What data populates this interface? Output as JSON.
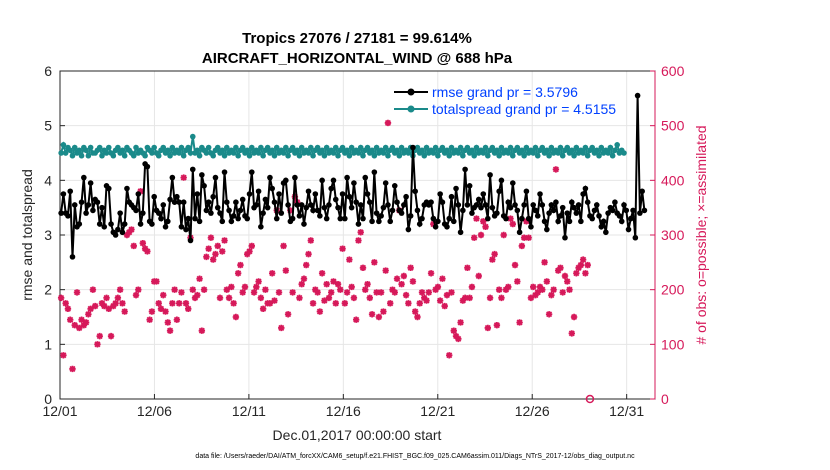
{
  "chart_data": {
    "type": "line",
    "title": "Tropics 27076 / 27181 = 99.614%",
    "subtitle": "AIRCRAFT_HORIZONTAL_WIND @ 688 hPa",
    "xlabel": "Dec.01,2017 00:00:00 start",
    "ylabel": "rmse and totalspread",
    "y2label": "# of obs: o=possible; ×=assimilated",
    "footnote": "data file: /Users/raeder/DAI/ATM_forcXX/CAM6_setup/f.e21.FHIST_BGC.f09_025.CAM6assim.011/Diags_NTrS_2017-12/obs_diag_output.nc",
    "xlim": [
      0,
      31.5
    ],
    "ylim": [
      0,
      6
    ],
    "y2lim": [
      0,
      600
    ],
    "x_ticks": [
      {
        "pos": 0,
        "label": "12/01"
      },
      {
        "pos": 5,
        "label": "12/06"
      },
      {
        "pos": 10,
        "label": "12/11"
      },
      {
        "pos": 15,
        "label": "12/16"
      },
      {
        "pos": 20,
        "label": "12/21"
      },
      {
        "pos": 25,
        "label": "12/26"
      },
      {
        "pos": 30,
        "label": "12/31"
      }
    ],
    "y_ticks": [
      "0",
      "1",
      "2",
      "3",
      "4",
      "5",
      "6"
    ],
    "y2_ticks": [
      "0",
      "100",
      "200",
      "300",
      "400",
      "500",
      "600"
    ],
    "colors": {
      "rmse": "#000000",
      "spread": "#1a8a8a",
      "obs": "#d6195a",
      "legend_text": "#0040ff"
    },
    "legend": [
      {
        "name": "rmse grand pr = 3.5796"
      },
      {
        "name": "totalspread grand pr = 4.5155"
      }
    ],
    "series": [
      {
        "name": "rmse",
        "values": [
          3.4,
          3.75,
          3.4,
          3.35,
          3.8,
          2.6,
          3.55,
          3.15,
          3.2,
          3.6,
          4.05,
          3.4,
          3.55,
          3.95,
          3.45,
          3.65,
          3.6,
          3.2,
          3.5,
          3.15,
          3.9,
          3.85,
          3.2,
          3.05,
          3.0,
          3.1,
          3.4,
          3.05,
          3.2,
          3.85,
          3.6,
          3.55,
          3.5,
          3.45,
          3.75,
          3.2,
          3.4,
          4.3,
          4.25,
          3.25,
          3.2,
          3.7,
          3.45,
          3.4,
          3.3,
          3.55,
          3.15,
          3.25,
          3.65,
          4.05,
          3.6,
          3.7,
          3.6,
          3.15,
          3.6,
          3.1,
          3.3,
          2.9,
          4.2,
          3.3,
          3.75,
          3.25,
          4.1,
          3.9,
          3.45,
          3.6,
          3.4,
          3.7,
          4.05,
          3.5,
          3.4,
          3.25,
          4.15,
          3.6,
          3.45,
          3.25,
          3.35,
          3.6,
          3.3,
          3.45,
          3.65,
          3.35,
          3.3,
          3.75,
          4.15,
          3.5,
          3.55,
          3.8,
          3.15,
          3.4,
          3.65,
          3.5,
          4.05,
          3.85,
          3.6,
          3.3,
          3.75,
          3.4,
          3.95,
          4.0,
          3.55,
          3.25,
          3.3,
          4.05,
          3.55,
          3.35,
          3.55,
          3.2,
          3.5,
          3.8,
          3.55,
          3.45,
          3.75,
          3.45,
          3.35,
          4.0,
          3.5,
          3.3,
          3.55,
          3.85,
          4.0,
          3.65,
          3.5,
          3.3,
          3.75,
          3.3,
          4.05,
          3.7,
          3.5,
          3.95,
          3.6,
          3.2,
          3.55,
          3.3,
          4.05,
          3.75,
          3.6,
          3.25,
          4.15,
          3.4,
          3.25,
          3.35,
          3.5,
          3.95,
          3.55,
          3.25,
          3.45,
          3.9,
          3.6,
          3.45,
          3.4,
          3.55,
          3.7,
          3.1,
          3.35,
          4.6,
          3.8,
          3.45,
          3.2,
          3.3,
          3.55,
          3.6,
          3.55,
          3.6,
          3.3,
          3.15,
          3.25,
          3.75,
          3.6,
          3.2,
          3.15,
          3.3,
          3.7,
          3.25,
          3.85,
          3.55,
          3.05,
          3.45,
          4.2,
          3.55,
          3.9,
          3.4,
          3.5,
          3.55,
          3.65,
          3.5,
          3.75,
          3.55,
          3.3,
          4.1,
          3.5,
          3.35,
          3.4,
          3.8,
          4.0,
          3.35,
          3.3,
          3.6,
          3.5,
          3.95,
          3.55,
          3.45,
          3.05,
          3.3,
          3.55,
          3.8,
          3.3,
          3.15,
          3.55,
          3.45,
          3.35,
          3.75,
          3.55,
          3.25,
          3.1,
          3.4,
          3.55,
          3.45,
          3.6,
          3.25,
          3.35,
          3.5,
          2.95,
          3.4,
          3.25,
          3.6,
          3.5,
          3.4,
          3.55,
          3.25,
          3.75,
          3.85,
          3.6,
          3.35,
          3.3,
          3.45,
          3.55,
          3.35,
          3.15,
          3.25,
          3.05,
          3.4,
          3.5,
          3.45,
          3.6,
          3.4,
          3.35,
          3.25,
          3.55,
          3.45,
          3.1,
          3.3,
          3.45,
          2.95,
          5.55,
          3.4,
          3.8,
          3.45
        ]
      },
      {
        "name": "totalspread",
        "values": [
          4.5,
          4.65,
          4.5,
          4.6,
          4.55,
          4.45,
          4.6,
          4.5,
          4.55,
          4.45,
          4.6,
          4.55,
          4.45,
          4.6,
          4.5,
          4.5,
          4.55,
          4.6,
          4.45,
          4.55,
          4.5,
          4.6,
          4.5,
          4.45,
          4.55,
          4.6,
          4.5,
          4.55,
          4.45,
          4.6,
          4.55,
          4.5,
          4.45,
          4.6,
          4.5,
          4.55,
          4.5,
          4.45,
          4.6,
          4.55,
          4.5,
          4.6,
          4.5,
          4.45,
          4.55,
          4.6,
          4.5,
          4.55,
          4.45,
          4.6,
          4.5,
          4.55,
          4.5,
          4.6,
          4.45,
          4.55,
          4.6,
          4.5,
          4.8,
          4.5,
          4.55,
          4.45,
          4.6,
          4.55,
          4.5,
          4.6,
          4.5,
          4.45,
          4.55,
          4.6,
          4.5,
          4.55,
          4.45,
          4.6,
          4.5,
          4.55,
          4.5,
          4.6,
          4.45,
          4.55,
          4.6,
          4.5,
          4.55,
          4.45,
          4.6,
          4.5,
          4.55,
          4.5,
          4.6,
          4.45,
          4.55,
          4.6,
          4.5,
          4.55,
          4.45,
          4.6,
          4.5,
          4.55,
          4.5,
          4.6,
          4.45,
          4.55,
          4.6,
          4.5,
          4.55,
          4.45,
          4.6,
          4.5,
          4.55,
          4.5,
          4.6,
          4.45,
          4.55,
          4.6,
          4.5,
          4.55,
          4.45,
          4.6,
          4.5,
          4.55,
          4.5,
          4.6,
          4.45,
          4.55,
          4.6,
          4.5,
          4.55,
          4.45,
          4.6,
          4.5,
          4.55,
          4.5,
          4.6,
          4.45,
          4.55,
          4.6,
          4.5,
          4.55,
          4.45,
          4.6,
          4.5,
          4.55,
          4.5,
          4.6,
          4.45,
          4.55,
          4.6,
          4.5,
          4.55,
          4.45,
          4.6,
          4.5,
          4.55,
          4.5,
          4.6,
          4.45,
          4.55,
          4.6,
          4.5,
          4.55,
          4.45,
          4.6,
          4.5,
          4.55,
          4.5,
          4.6,
          4.45,
          4.55,
          4.6,
          4.5,
          4.55,
          4.45,
          4.6,
          4.5,
          4.55,
          4.5,
          4.6,
          4.45,
          4.55,
          4.6,
          4.5,
          4.55,
          4.45,
          4.6,
          4.5,
          4.55,
          4.5,
          4.6,
          4.45,
          4.55,
          4.6,
          4.5,
          4.55,
          4.45,
          4.6,
          4.5,
          4.55,
          4.5,
          4.6,
          4.45,
          4.55,
          4.6,
          4.5,
          4.55,
          4.45,
          4.6,
          4.5,
          4.55,
          4.5,
          4.6,
          4.45,
          4.55,
          4.6,
          4.5,
          4.55,
          4.45,
          4.6,
          4.5,
          4.55,
          4.5,
          4.6,
          4.45,
          4.55,
          4.6,
          4.5,
          4.55,
          4.45,
          4.6,
          4.5,
          4.55,
          4.5,
          4.6,
          4.45,
          4.55,
          4.6,
          4.5,
          4.55,
          4.45,
          4.6,
          4.5,
          4.55,
          4.5,
          4.6,
          4.45,
          4.55,
          4.65,
          4.5,
          4.55,
          4.5
        ]
      },
      {
        "name": "obs_assimilated",
        "values": [
          185,
          80,
          175,
          165,
          145,
          55,
          135,
          195,
          130,
          145,
          135,
          140,
          155,
          165,
          200,
          170,
          100,
          115,
          175,
          170,
          185,
          165,
          115,
          170,
          175,
          185,
          200,
          175,
          160,
          300,
          305,
          310,
          280,
          190,
          200,
          380,
          285,
          275,
          270,
          145,
          160,
          215,
          215,
          175,
          165,
          190,
          160,
          140,
          125,
          175,
          200,
          145,
          175,
          195,
          405,
          175,
          165,
          295,
          200,
          185,
          190,
          220,
          125,
          200,
          260,
          275,
          295,
          255,
          265,
          280,
          185,
          270,
          290,
          200,
          185,
          205,
          175,
          150,
          230,
          245,
          195,
          205,
          265,
          270,
          280,
          195,
          205,
          215,
          185,
          165,
          200,
          175,
          175,
          230,
          180,
          345,
          195,
          130,
          280,
          235,
          155,
          345,
          195,
          370,
          360,
          185,
          210,
          220,
          245,
          265,
          290,
          175,
          200,
          195,
          160,
          230,
          180,
          210,
          185,
          195,
          215,
          175,
          210,
          200,
          275,
          175,
          195,
          255,
          205,
          185,
          145,
          290,
          305,
          240,
          200,
          210,
          185,
          155,
          250,
          195,
          150,
          195,
          160,
          235,
          505,
          175,
          200,
          195,
          220,
          345,
          210,
          225,
          190,
          175,
          240,
          215,
          160,
          150,
          175,
          195,
          185,
          180,
          195,
          230,
          320,
          200,
          205,
          180,
          220,
          170,
          190,
          80,
          195,
          125,
          115,
          110,
          140,
          180,
          185,
          240,
          185,
          205,
          295,
          330,
          225,
          300,
          325,
          315,
          130,
          185,
          255,
          265,
          135,
          200,
          185,
          300,
          200,
          205,
          330,
          320,
          245,
          215,
          140,
          280,
          295,
          325,
          295,
          185,
          205,
          190,
          195,
          205,
          200,
          250,
          215,
          155,
          190,
          200,
          420,
          235,
          240,
          195,
          225,
          215,
          200,
          120,
          150,
          230,
          240,
          245,
          255,
          230,
          245,
          0
        ]
      }
    ]
  }
}
